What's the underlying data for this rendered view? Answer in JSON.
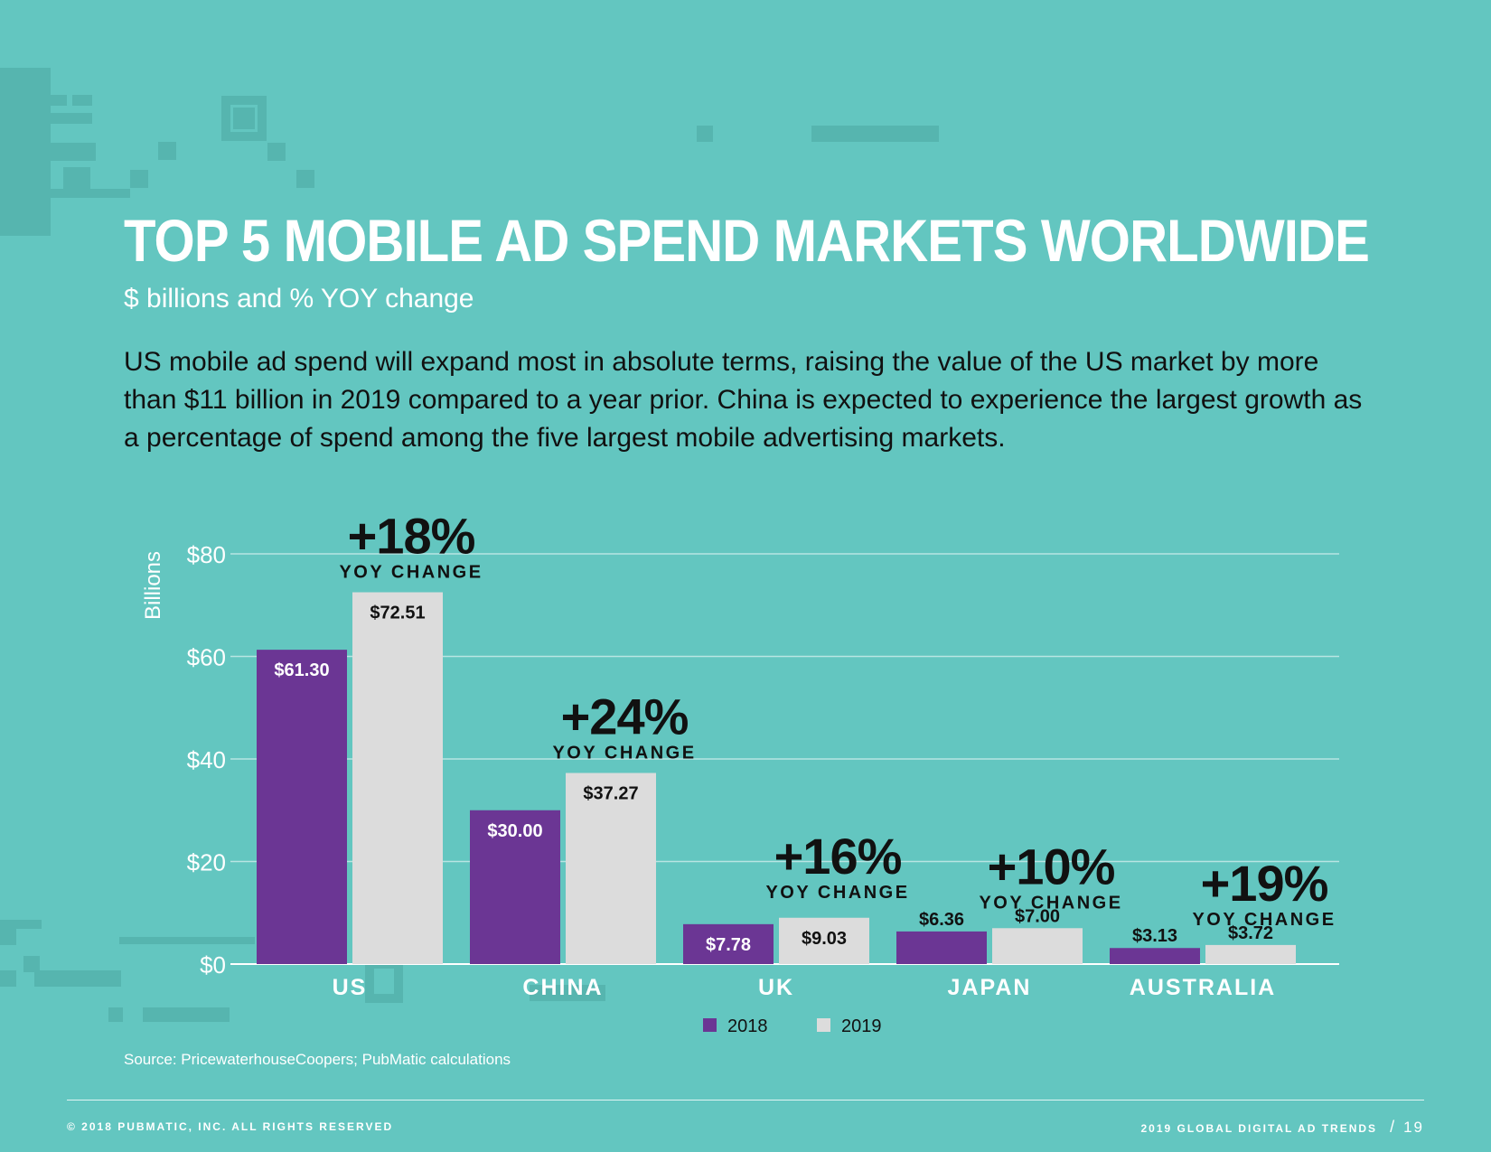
{
  "title": "TOP 5 MOBILE AD SPEND MARKETS WORLDWIDE",
  "subtitle": "$ billions and % YOY change",
  "body": "US mobile ad spend will expand most in absolute terms, raising the value of the US market by more than $11 billion in 2019 compared to a year prior. China is expected to experience the largest growth as a percentage of spend among the five largest mobile advertising markets.",
  "chart_data": {
    "type": "bar",
    "categories": [
      "US",
      "CHINA",
      "UK",
      "JAPAN",
      "AUSTRALIA"
    ],
    "series": [
      {
        "name": "2018",
        "values": [
          61.3,
          30.0,
          7.78,
          6.36,
          3.13
        ],
        "labels": [
          "$61.30",
          "$30.00",
          "$7.78",
          "$6.36",
          "$3.13"
        ],
        "color": "#6b3694"
      },
      {
        "name": "2019",
        "values": [
          72.51,
          37.27,
          9.03,
          7.0,
          3.72
        ],
        "labels": [
          "$72.51",
          "$37.27",
          "$9.03",
          "$7.00",
          "$3.72"
        ],
        "color": "#dcdcdc"
      }
    ],
    "yoy_change": [
      "+18%",
      "+24%",
      "+16%",
      "+10%",
      "+19%"
    ],
    "yoy_label": "YOY CHANGE",
    "ylabel": "Billions",
    "ylim": [
      0,
      80
    ],
    "yticks": [
      0,
      20,
      40,
      60,
      80
    ],
    "ytick_labels": [
      "$0",
      "$20",
      "$40",
      "$60",
      "$80"
    ],
    "grid": true,
    "legend_position": "bottom-center"
  },
  "source": "Source: PricewaterhouseCoopers; PubMatic calculations",
  "footer": {
    "copyright": "© 2018 PUBMATIC, INC. ALL RIGHTS RESERVED",
    "report": "2019 GLOBAL DIGITAL AD TRENDS",
    "separator": "/",
    "page": "19"
  }
}
